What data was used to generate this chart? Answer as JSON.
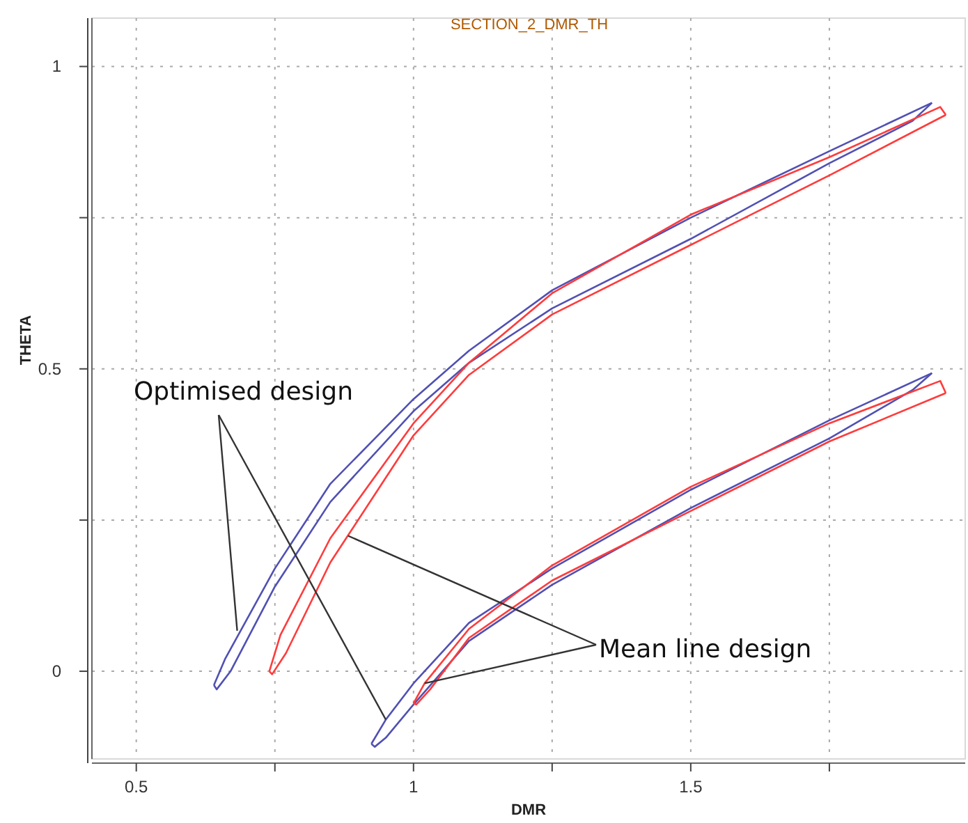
{
  "chart_data": {
    "type": "line",
    "title": "SECTION_2_DMR_TH",
    "xlabel": "DMR",
    "ylabel": "THETA",
    "xlim": [
      0.42,
      1.995
    ],
    "ylim": [
      -0.145,
      1.08
    ],
    "xticks": [
      0.5,
      {
        "value": 0.75,
        "label": null
      },
      1,
      {
        "value": 1.25,
        "label": null
      },
      1.5,
      {
        "value": 1.75,
        "label": null
      }
    ],
    "yticks": [
      0,
      {
        "value": 0.25,
        "label": null
      },
      0.5,
      {
        "value": 0.75,
        "label": null
      },
      1
    ],
    "grid": true,
    "line_style": "solid",
    "marker": "none",
    "annotations": [
      {
        "text": "Optimised design",
        "x": 0.682,
        "y": 0.067
      },
      {
        "text": "Mean line design",
        "x": 0.882,
        "y": 0.224
      }
    ],
    "series": [
      {
        "color": "#5050b4",
        "x": [
          0.64,
          0.66,
          0.75,
          0.85,
          1.0,
          1.1,
          1.25,
          1.5,
          1.75,
          1.935
        ],
        "values": [
          -0.023,
          0.02,
          0.17,
          0.31,
          0.45,
          0.53,
          0.63,
          0.75,
          0.86,
          0.94
        ]
      },
      {
        "color": "#5050b4",
        "x": [
          0.64,
          0.645,
          0.67,
          0.75,
          0.85,
          1.0,
          1.1,
          1.25,
          1.5,
          1.75,
          1.9,
          1.935
        ],
        "values": [
          -0.023,
          -0.03,
          0.0,
          0.14,
          0.28,
          0.43,
          0.51,
          0.6,
          0.715,
          0.84,
          0.91,
          0.94
        ]
      },
      {
        "color": "#ff3b3b",
        "x": [
          0.74,
          0.76,
          0.85,
          1.0,
          1.1,
          1.25,
          1.5,
          1.75,
          1.95,
          1.96
        ],
        "values": [
          0.0,
          0.06,
          0.22,
          0.41,
          0.51,
          0.625,
          0.755,
          0.85,
          0.933,
          0.92
        ]
      },
      {
        "color": "#ff3b3b",
        "x": [
          0.74,
          0.745,
          0.77,
          0.85,
          1.0,
          1.1,
          1.25,
          1.5,
          1.75,
          1.96
        ],
        "values": [
          0.0,
          -0.005,
          0.03,
          0.18,
          0.39,
          0.49,
          0.59,
          0.705,
          0.82,
          0.92
        ]
      },
      {
        "color": "#5050b4",
        "x": [
          0.924,
          0.95,
          1.0,
          1.1,
          1.25,
          1.5,
          1.75,
          1.935
        ],
        "values": [
          -0.12,
          -0.08,
          -0.02,
          0.08,
          0.17,
          0.3,
          0.415,
          0.493
        ]
      },
      {
        "color": "#5050b4",
        "x": [
          0.924,
          0.93,
          0.95,
          1.0,
          1.1,
          1.25,
          1.5,
          1.75,
          1.9,
          1.935
        ],
        "values": [
          -0.12,
          -0.125,
          -0.11,
          -0.055,
          0.05,
          0.143,
          0.27,
          0.385,
          0.465,
          0.493
        ]
      },
      {
        "color": "#ff3b3b",
        "x": [
          1.0,
          1.02,
          1.1,
          1.25,
          1.5,
          1.75,
          1.95,
          1.96
        ],
        "values": [
          -0.053,
          -0.02,
          0.07,
          0.175,
          0.305,
          0.41,
          0.48,
          0.46
        ]
      },
      {
        "color": "#ff3b3b",
        "x": [
          1.0,
          1.005,
          1.03,
          1.1,
          1.25,
          1.5,
          1.75,
          1.96
        ],
        "values": [
          -0.053,
          -0.055,
          -0.03,
          0.055,
          0.15,
          0.265,
          0.38,
          0.46
        ]
      }
    ]
  }
}
